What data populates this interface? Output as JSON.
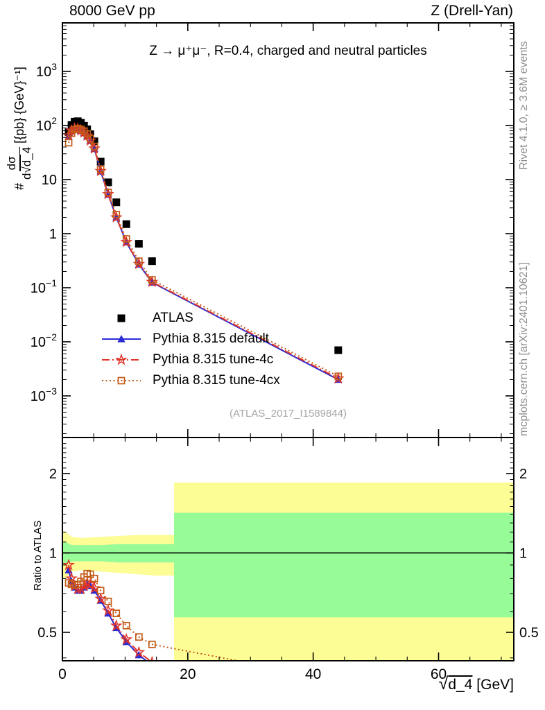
{
  "header": {
    "left": "8000 GeV pp",
    "right": "Z (Drell-Yan)"
  },
  "plot": {
    "title": "Z → μ⁺μ⁻, R=0.4, charged and neutral particles",
    "watermark": "(ATLAS_2017_I1589844)",
    "ratio_label": "Ratio to ATLAS",
    "ylabel": {
      "prefix": "#",
      "num": "dσ",
      "den_pre": "d√",
      "den_arg": "d_4",
      "units": "[{pb} {GeV}⁻¹]"
    },
    "xlabel": {
      "radical": "√",
      "radicand": "d_4",
      "units": "[GeV]"
    }
  },
  "sidebar": {
    "top": "Rivet 4.1.0, ≥ 3.6M events",
    "bottom": "mcplots.cern.ch [arXiv:2401.10621]"
  },
  "chart_data": {
    "type": "line",
    "title": "Z → μ⁺μ⁻, R=0.4, charged and neutral particles",
    "xlabel": "√d_4 [GeV]",
    "ylabel": "# dσ/d√d_4 [{pb} {GeV}⁻¹]",
    "ratio_ylabel": "Ratio to ATLAS",
    "xlim": [
      0,
      72
    ],
    "main_ylim_log": [
      0.00017,
      7900
    ],
    "ratio_ylim_log": [
      0.39,
      2.74
    ],
    "x_major_ticks": [
      0,
      20,
      40,
      60
    ],
    "x_minor_step": 5,
    "main_y_ticks": [
      {
        "v": 1000,
        "base": "10",
        "exp": "3"
      },
      {
        "v": 100,
        "base": "10",
        "exp": "2"
      },
      {
        "v": 10,
        "base": "10",
        "exp": ""
      },
      {
        "v": 1,
        "base": "1",
        "exp": ""
      },
      {
        "v": 0.1,
        "base": "10",
        "exp": "−1"
      },
      {
        "v": 0.01,
        "base": "10",
        "exp": "−2"
      },
      {
        "v": 0.001,
        "base": "10",
        "exp": "−3"
      }
    ],
    "ratio_y_ticks": [
      {
        "v": 0.5,
        "label": "0.5"
      },
      {
        "v": 1,
        "label": "1"
      },
      {
        "v": 2,
        "label": "2"
      }
    ],
    "x": [
      1.0,
      1.45,
      1.95,
      2.45,
      2.95,
      3.45,
      3.95,
      4.45,
      5.1,
      6.1,
      7.3,
      8.6,
      10.2,
      12.2,
      14.3,
      44
    ],
    "series": [
      {
        "name": "ATLAS",
        "color": "#000000",
        "marker": "square-filled",
        "line": "none",
        "y": [
          75,
          102,
          118,
          120,
          112,
          99,
          85,
          69,
          51,
          21.5,
          8.9,
          3.8,
          1.5,
          0.65,
          0.31,
          0.007
        ]
      },
      {
        "name": "Pythia 8.315 default",
        "color": "#2b2bd5",
        "marker": "triangle-filled",
        "line": "solid",
        "y": [
          63,
          79,
          86,
          86,
          80,
          73,
          64,
          52,
          37,
          14.2,
          5.3,
          2.0,
          0.69,
          0.27,
          0.125,
          0.002
        ],
        "ratio": [
          0.86,
          0.78,
          0.74,
          0.72,
          0.72,
          0.74,
          0.76,
          0.75,
          0.72,
          0.66,
          0.59,
          0.52,
          0.46,
          0.41,
          0.375,
          0.29
        ]
      },
      {
        "name": "Pythia 8.315 tune-4c",
        "color": "#e03328",
        "marker": "star-open",
        "line": "dashdot",
        "y": [
          66,
          81,
          88,
          87,
          81,
          74,
          65,
          52.5,
          37.5,
          14.4,
          5.4,
          2.0,
          0.7,
          0.275,
          0.128,
          0.0021
        ],
        "ratio": [
          0.9,
          0.8,
          0.75,
          0.73,
          0.73,
          0.75,
          0.77,
          0.76,
          0.735,
          0.67,
          0.605,
          0.53,
          0.47,
          0.42,
          0.385,
          0.3
        ]
      },
      {
        "name": "Pythia 8.315 tune-4cx",
        "color": "#c25a16",
        "marker": "square-open",
        "line": "dotted",
        "y": [
          48,
          72,
          84,
          88,
          85,
          79,
          70,
          57,
          41,
          15.5,
          5.8,
          2.25,
          0.8,
          0.31,
          0.14,
          0.0023
        ],
        "ratio": [
          0.77,
          0.76,
          0.755,
          0.76,
          0.78,
          0.81,
          0.835,
          0.83,
          0.8,
          0.72,
          0.655,
          0.59,
          0.53,
          0.48,
          0.45,
          0.33
        ]
      }
    ],
    "bands": {
      "narrow": {
        "x": [
          0.5,
          1.5,
          3,
          6,
          9,
          12,
          15,
          17.8
        ],
        "yellow_top": [
          1.2,
          1.15,
          1.14,
          1.15,
          1.16,
          1.17,
          1.17,
          1.17
        ],
        "green_top": [
          1.1,
          1.07,
          1.07,
          1.07,
          1.08,
          1.08,
          1.08,
          1.08
        ],
        "green_bot": [
          0.9,
          0.93,
          0.93,
          0.93,
          0.92,
          0.92,
          0.92,
          0.92
        ],
        "yellow_bot": [
          0.8,
          0.85,
          0.86,
          0.85,
          0.84,
          0.83,
          0.82,
          0.82
        ]
      },
      "wide": {
        "x_start": 17.8,
        "x_end": 72,
        "yellow": [
          0.3,
          1.85
        ],
        "green": [
          0.57,
          1.42
        ]
      }
    },
    "legend_position": "middle-left",
    "grid": false,
    "colors": {
      "band_yellow": "#fdfd96",
      "band_green": "#97fb98",
      "ratio_line": "#000000"
    }
  }
}
